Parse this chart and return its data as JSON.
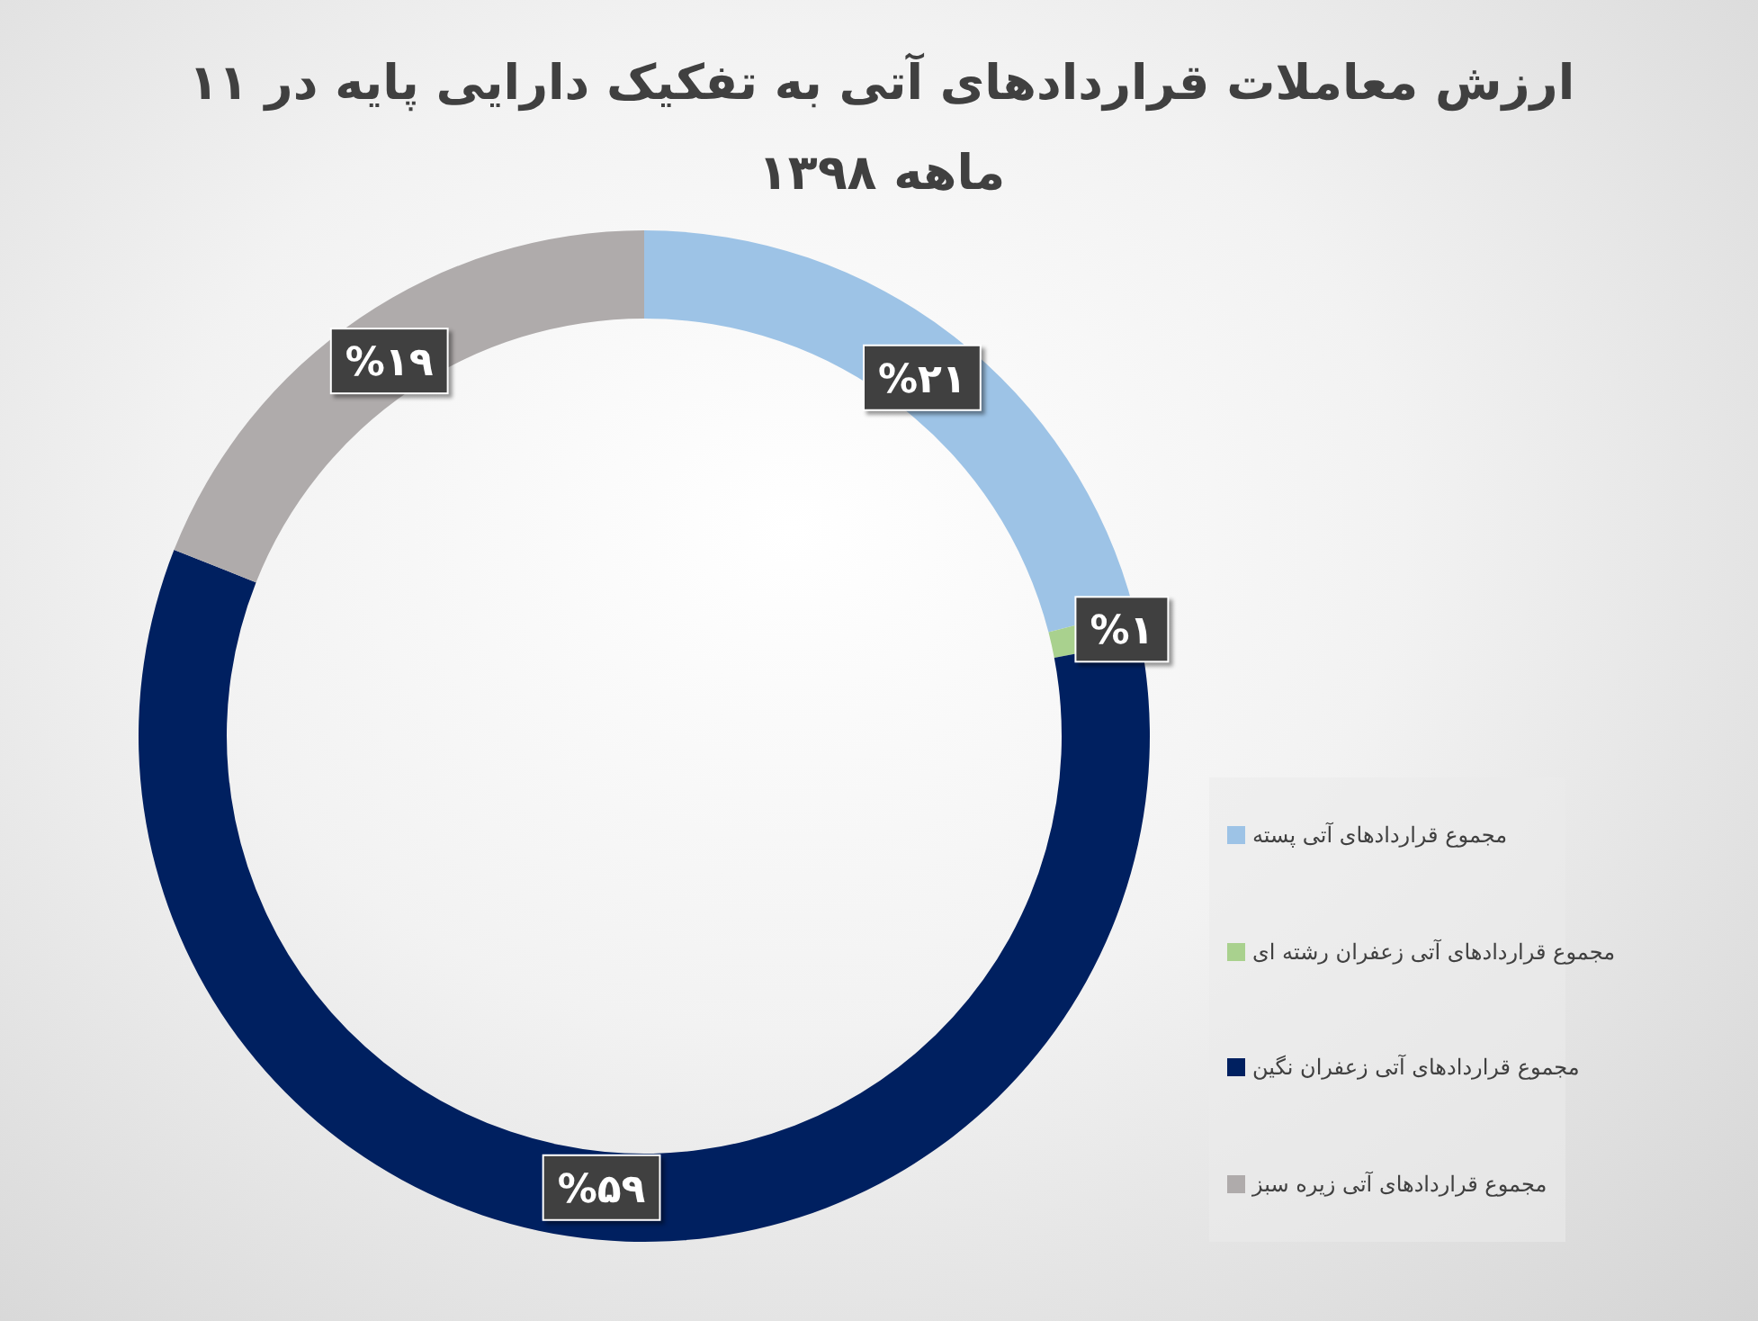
{
  "chart_data": {
    "type": "donut",
    "title": "ارزش معاملات قراردادهای آتی به تفکیک دارایی پایه در ۱۱ ماهه ۱۳۹۸",
    "categories": [
      "مجموع قراردادهای آتی پسته",
      "مجموع قراردادهای آتی زعفران رشته ای",
      "مجموع قراردادهای آتی زعفران نگین",
      "مجموع قراردادهای آتی زیره سبز"
    ],
    "values": [
      21,
      1,
      59,
      19
    ],
    "colors": [
      "#9dc3e6",
      "#a9d18e",
      "#002060",
      "#afabab"
    ],
    "value_labels": [
      "%۲۱",
      "%۱",
      "%۵۹",
      "%۱۹"
    ],
    "legend": "right"
  }
}
